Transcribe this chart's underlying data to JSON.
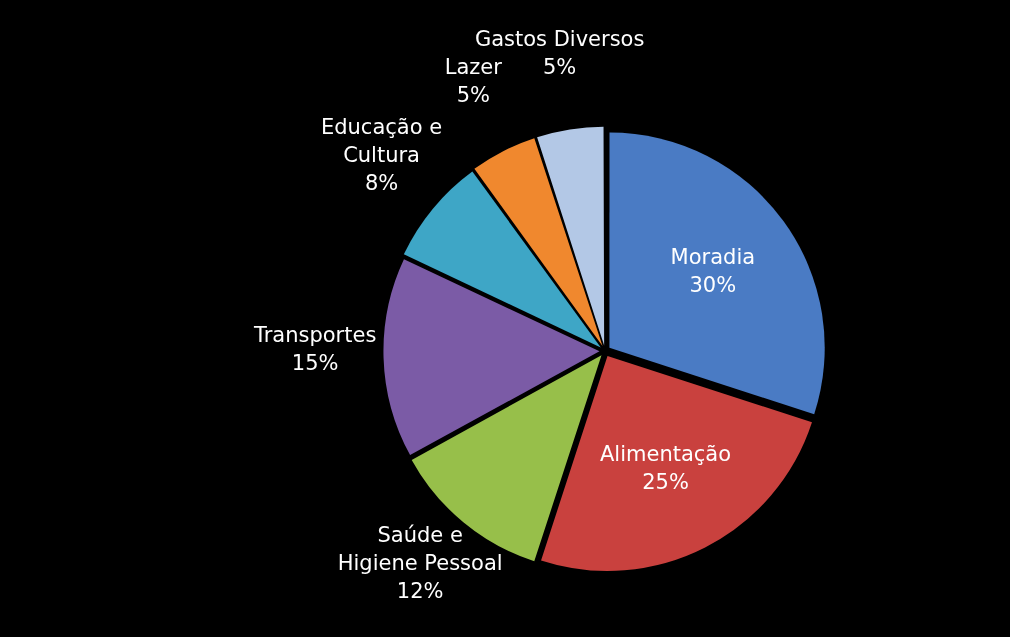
{
  "chart_data": {
    "type": "pie",
    "categories": [
      "Moradia",
      "Alimentação",
      "Saúde e Higiene Pessoal",
      "Transportes",
      "Educação e Cultura",
      "Lazer",
      "Gastos Diversos"
    ],
    "values": [
      30,
      25,
      12,
      15,
      8,
      5,
      5
    ],
    "colors": [
      "#4a7bc4",
      "#c9413e",
      "#97bf4a",
      "#7b5ba6",
      "#3ea6c6",
      "#f0882e",
      "#b3c8e6"
    ],
    "value_labels": [
      "30%",
      "25%",
      "12%",
      "15%",
      "8%",
      "5%",
      "5%"
    ],
    "legend": false
  }
}
